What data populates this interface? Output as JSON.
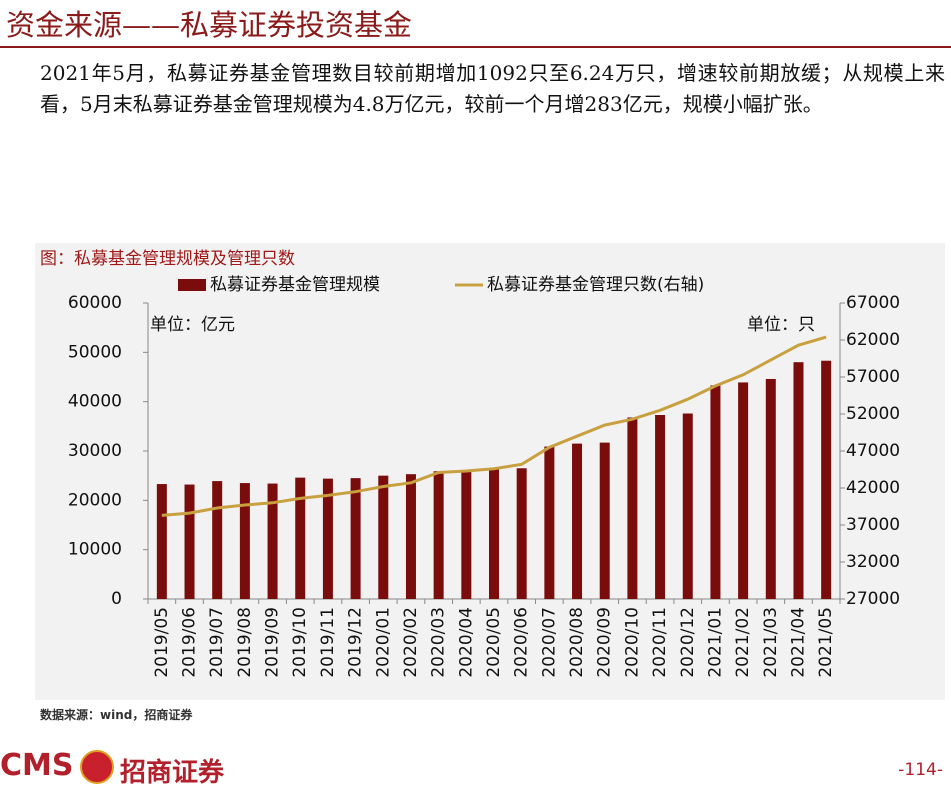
{
  "header": {
    "title": "资金来源——私募证券投资基金"
  },
  "paragraph": "2021年5月，私募证券基金管理数目较前期增加1092只至6.24万只，增速较前期放缓；从规模上来看，5月末私募证券基金管理规模为4.8万亿元，较前一个月增283亿元，规模小幅扩张。",
  "chart_data": {
    "type": "bar_line",
    "title": "图：私募基金管理规模及管理只数",
    "categories": [
      "2019/05",
      "2019/06",
      "2019/07",
      "2019/08",
      "2019/09",
      "2019/10",
      "2019/11",
      "2019/12",
      "2020/01",
      "2020/02",
      "2020/03",
      "2020/04",
      "2020/05",
      "2020/06",
      "2020/07",
      "2020/08",
      "2020/09",
      "2020/10",
      "2020/11",
      "2020/12",
      "2021/01",
      "2021/02",
      "2021/03",
      "2021/04",
      "2021/05"
    ],
    "series": [
      {
        "name": "私募证券基金管理规模",
        "color": "#7b0c0c",
        "type": "bar",
        "values": [
          23300,
          23200,
          23900,
          23500,
          23400,
          24600,
          24400,
          24500,
          25000,
          25300,
          25900,
          25900,
          26400,
          26500,
          30900,
          31500,
          31700,
          36800,
          37300,
          37600,
          43300,
          43900,
          44600,
          48000,
          48300
        ]
      },
      {
        "name": "私募证券基金管理只数(右轴)",
        "color": "#c8a040",
        "type": "line",
        "axis": "y2",
        "values": [
          38300,
          38600,
          39300,
          39700,
          40000,
          40600,
          41000,
          41500,
          42200,
          42700,
          44100,
          44300,
          44600,
          45200,
          47500,
          49000,
          50500,
          51300,
          52500,
          54000,
          55800,
          57300,
          59300,
          61300,
          62400
        ]
      }
    ],
    "ylim": [
      0,
      60000
    ],
    "yticks": [
      0,
      10000,
      20000,
      30000,
      40000,
      50000,
      60000
    ],
    "y2lim": [
      27000,
      67000
    ],
    "y2ticks": [
      27000,
      32000,
      37000,
      42000,
      47000,
      52000,
      57000,
      62000,
      67000
    ],
    "annotations": [
      "单位：亿元",
      "单位：只"
    ],
    "legend": "top"
  },
  "source": "数据来源：wind，招商证券",
  "logo": {
    "left": "CMS",
    "right": "招商证券"
  },
  "page_number": "-114-"
}
